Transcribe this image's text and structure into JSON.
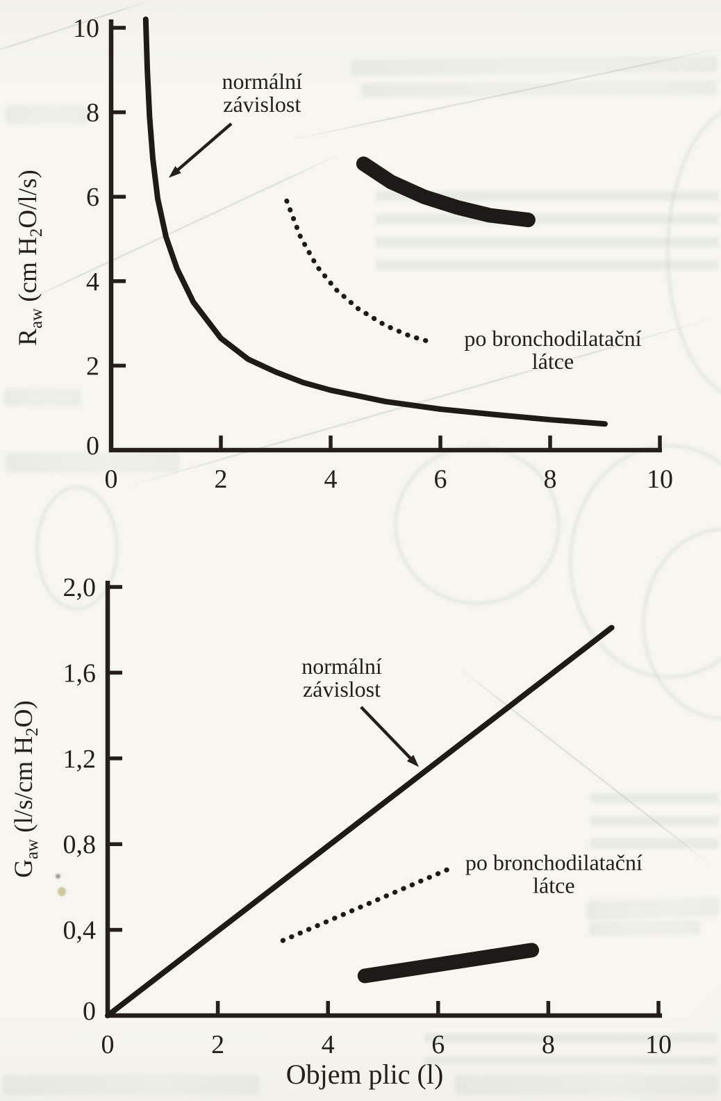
{
  "figure": {
    "background": "#f6f5f0",
    "ink": "#242019",
    "curve_color": "#1d1b17"
  },
  "chart_data": [
    {
      "id": "airway-resistance",
      "type": "line",
      "title": "",
      "xlabel": "",
      "ylabel": "Raw (cm H2O/l/s)",
      "ylabel_parts": [
        {
          "t": "R",
          "sub": false
        },
        {
          "t": "aw",
          "sub": true
        },
        {
          "t": " (cm H",
          "sub": false
        },
        {
          "t": "2",
          "sub": true
        },
        {
          "t": "O/l/s)",
          "sub": false
        }
      ],
      "xlim": [
        0,
        10
      ],
      "ylim": [
        0,
        10
      ],
      "grid": false,
      "legend": "inline-annotations",
      "xticks": [
        {
          "v": 0,
          "label": "0"
        },
        {
          "v": 2,
          "label": "2"
        },
        {
          "v": 4,
          "label": "4"
        },
        {
          "v": 6,
          "label": "6"
        },
        {
          "v": 8,
          "label": "8"
        },
        {
          "v": 10,
          "label": "10"
        }
      ],
      "yticks": [
        {
          "v": 0,
          "label": "0"
        },
        {
          "v": 2,
          "label": "2"
        },
        {
          "v": 4,
          "label": "4"
        },
        {
          "v": 6,
          "label": "6"
        },
        {
          "v": 8,
          "label": "8"
        },
        {
          "v": 10,
          "label": "10"
        }
      ],
      "series": [
        {
          "name": "normální závislost",
          "style": "solid",
          "points": [
            [
              0.63,
              10.2
            ],
            [
              0.66,
              9.0
            ],
            [
              0.7,
              7.9
            ],
            [
              0.76,
              6.9
            ],
            [
              0.85,
              5.95
            ],
            [
              1.0,
              5.05
            ],
            [
              1.2,
              4.3
            ],
            [
              1.5,
              3.5
            ],
            [
              2.0,
              2.65
            ],
            [
              2.5,
              2.15
            ],
            [
              3.0,
              1.85
            ],
            [
              3.5,
              1.6
            ],
            [
              4.0,
              1.42
            ],
            [
              5.0,
              1.15
            ],
            [
              6.0,
              0.97
            ],
            [
              7.0,
              0.84
            ],
            [
              8.0,
              0.72
            ],
            [
              9.0,
              0.62
            ]
          ]
        },
        {
          "name": "po bronchodilatační látce",
          "style": "dotted",
          "points": [
            [
              3.2,
              5.9
            ],
            [
              3.45,
              5.05
            ],
            [
              3.75,
              4.35
            ],
            [
              4.1,
              3.8
            ],
            [
              4.5,
              3.35
            ],
            [
              5.0,
              2.95
            ],
            [
              5.45,
              2.7
            ],
            [
              5.85,
              2.55
            ]
          ]
        },
        {
          "name": "",
          "style": "thick",
          "points": [
            [
              4.6,
              6.78
            ],
            [
              5.1,
              6.35
            ],
            [
              5.7,
              6.0
            ],
            [
              6.3,
              5.75
            ],
            [
              6.9,
              5.56
            ],
            [
              7.6,
              5.45
            ]
          ]
        }
      ],
      "annotations": [
        {
          "lines": [
            "normální",
            "závislost"
          ],
          "x": 2.75,
          "y": 8.73,
          "arrow": {
            "from": [
              2.19,
              7.73
            ],
            "to": [
              1.05,
              6.45
            ]
          }
        },
        {
          "lines": [
            "po bronchodilatační",
            "látce"
          ],
          "x": 8.05,
          "y": 2.65
        }
      ]
    },
    {
      "id": "airway-conductance",
      "type": "line",
      "title": "",
      "xlabel": "Objem plic (l)",
      "ylabel": "Gaw (l/s/cm H2O)",
      "ylabel_parts": [
        {
          "t": "G",
          "sub": false
        },
        {
          "t": "aw",
          "sub": true
        },
        {
          "t": " (l/s/cm H",
          "sub": false
        },
        {
          "t": "2",
          "sub": true
        },
        {
          "t": "O)",
          "sub": false
        }
      ],
      "xlim": [
        0,
        10
      ],
      "ylim": [
        0,
        2.0
      ],
      "grid": false,
      "legend": "inline-annotations",
      "xticks": [
        {
          "v": 0,
          "label": "0"
        },
        {
          "v": 2,
          "label": "2"
        },
        {
          "v": 4,
          "label": "4"
        },
        {
          "v": 6,
          "label": "6"
        },
        {
          "v": 8,
          "label": "8"
        },
        {
          "v": 10,
          "label": "10"
        }
      ],
      "yticks": [
        {
          "v": 0,
          "label": "0"
        },
        {
          "v": 0.4,
          "label": "0,4"
        },
        {
          "v": 0.8,
          "label": "0,8"
        },
        {
          "v": 1.2,
          "label": "1,2"
        },
        {
          "v": 1.6,
          "label": "1,6"
        },
        {
          "v": 2.0,
          "label": "2,0"
        }
      ],
      "series": [
        {
          "name": "normální závislost",
          "style": "solid",
          "points": [
            [
              0,
              0
            ],
            [
              9.15,
              1.81
            ]
          ]
        },
        {
          "name": "po bronchodilatační látce",
          "style": "dotted",
          "points": [
            [
              3.18,
              0.35
            ],
            [
              6.25,
              0.69
            ]
          ]
        },
        {
          "name": "",
          "style": "thick",
          "points": [
            [
              4.67,
              0.185
            ],
            [
              7.7,
              0.305
            ]
          ]
        }
      ],
      "annotations": [
        {
          "lines": [
            "normální",
            "závislost"
          ],
          "x": 4.25,
          "y": 1.63,
          "arrow": {
            "from": [
              4.6,
              1.44
            ],
            "to": [
              5.65,
              1.16
            ]
          }
        },
        {
          "lines": [
            "po bronchodilatační",
            "látce"
          ],
          "x": 8.1,
          "y": 0.715
        }
      ]
    }
  ]
}
